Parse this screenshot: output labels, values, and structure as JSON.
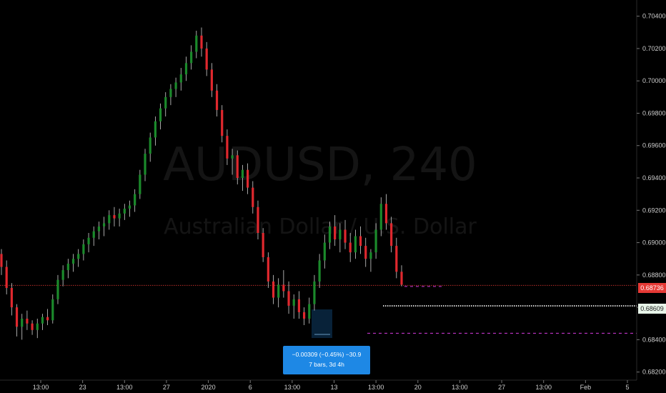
{
  "watermark": {
    "symbol": "AUDUSD, 240",
    "description": "Australian Dollar / U.S. Dollar"
  },
  "colors": {
    "up": "#1b8a2b",
    "down": "#e0282e",
    "measure": "#1e88e5",
    "dash_magenta": "#d63be0",
    "dash_white": "#ffffff",
    "last_price": "#e53935"
  },
  "price_axis": {
    "labels": [
      "0.70400",
      "0.70200",
      "0.70000",
      "0.69800",
      "0.69600",
      "0.69400",
      "0.69200",
      "0.69000",
      "0.68800",
      "0.68600",
      "0.68400",
      "0.68200"
    ]
  },
  "time_axis": {
    "labels": [
      "13:00",
      "23",
      "13:00",
      "27",
      "2020",
      "6",
      "13:00",
      "13",
      "13:00",
      "20",
      "13:00",
      "27",
      "13:00",
      "Feb",
      "5"
    ]
  },
  "price_tags": {
    "last": "0.68736",
    "line": "0.68609"
  },
  "measure_tool": {
    "line1": "−0.00309 (−0.45%) −30.9",
    "line2": "7 bars, 3d 4h"
  },
  "chart_data": {
    "type": "candlestick",
    "symbol": "AUDUSD",
    "interval": "240",
    "ylim": [
      0.6815,
      0.705
    ],
    "last_price": 0.68736,
    "horizontal_lines": [
      {
        "price": 0.68736,
        "style": "dotted",
        "color": "#e53935"
      },
      {
        "price": 0.68609,
        "style": "dotted",
        "color": "#ffffff"
      },
      {
        "price": 0.6844,
        "style": "dashed",
        "color": "#d63be0"
      },
      {
        "price": 0.68729,
        "style": "dashed",
        "color": "#d63be0"
      }
    ],
    "candles_ohlc": [
      [
        0.6893,
        0.6896,
        0.688,
        0.6885
      ],
      [
        0.6885,
        0.6889,
        0.6868,
        0.6872
      ],
      [
        0.6872,
        0.6875,
        0.6855,
        0.686
      ],
      [
        0.686,
        0.6862,
        0.6842,
        0.6848
      ],
      [
        0.6848,
        0.6856,
        0.684,
        0.6853
      ],
      [
        0.6853,
        0.6858,
        0.6846,
        0.685
      ],
      [
        0.685,
        0.6852,
        0.6843,
        0.6846
      ],
      [
        0.6846,
        0.6853,
        0.6841,
        0.685
      ],
      [
        0.685,
        0.6856,
        0.6846,
        0.6854
      ],
      [
        0.6854,
        0.6859,
        0.6849,
        0.6852
      ],
      [
        0.6852,
        0.6868,
        0.685,
        0.6865
      ],
      [
        0.6865,
        0.688,
        0.6862,
        0.6877
      ],
      [
        0.6877,
        0.6886,
        0.6873,
        0.6883
      ],
      [
        0.6883,
        0.689,
        0.6878,
        0.6887
      ],
      [
        0.6887,
        0.6893,
        0.6882,
        0.689
      ],
      [
        0.689,
        0.6896,
        0.6885,
        0.6893
      ],
      [
        0.6893,
        0.6902,
        0.6889,
        0.6899
      ],
      [
        0.6899,
        0.6906,
        0.6894,
        0.6903
      ],
      [
        0.6903,
        0.691,
        0.6898,
        0.6907
      ],
      [
        0.6907,
        0.6913,
        0.6902,
        0.691
      ],
      [
        0.691,
        0.6916,
        0.6904,
        0.6912
      ],
      [
        0.6912,
        0.692,
        0.6908,
        0.6917
      ],
      [
        0.6917,
        0.6922,
        0.691,
        0.6915
      ],
      [
        0.6915,
        0.6921,
        0.691,
        0.6918
      ],
      [
        0.6918,
        0.6924,
        0.6914,
        0.6921
      ],
      [
        0.6921,
        0.6926,
        0.6916,
        0.6923
      ],
      [
        0.6923,
        0.6933,
        0.6919,
        0.693
      ],
      [
        0.693,
        0.6945,
        0.6927,
        0.6942
      ],
      [
        0.6942,
        0.6958,
        0.6938,
        0.6955
      ],
      [
        0.6955,
        0.6968,
        0.695,
        0.6965
      ],
      [
        0.6965,
        0.6978,
        0.696,
        0.6975
      ],
      [
        0.6975,
        0.6986,
        0.697,
        0.6983
      ],
      [
        0.6983,
        0.6993,
        0.6978,
        0.699
      ],
      [
        0.699,
        0.6998,
        0.6985,
        0.6995
      ],
      [
        0.6995,
        0.7002,
        0.699,
        0.6999
      ],
      [
        0.6999,
        0.7008,
        0.6994,
        0.7004
      ],
      [
        0.7004,
        0.7015,
        0.7,
        0.7011
      ],
      [
        0.7011,
        0.7022,
        0.7007,
        0.7018
      ],
      [
        0.7018,
        0.7031,
        0.7014,
        0.7028
      ],
      [
        0.7028,
        0.7033,
        0.7015,
        0.702
      ],
      [
        0.702,
        0.7024,
        0.7003,
        0.7007
      ],
      [
        0.7007,
        0.7011,
        0.699,
        0.6994
      ],
      [
        0.6994,
        0.6998,
        0.6978,
        0.6982
      ],
      [
        0.6982,
        0.6985,
        0.6962,
        0.6966
      ],
      [
        0.6966,
        0.697,
        0.6948,
        0.6952
      ],
      [
        0.6952,
        0.6958,
        0.6942,
        0.6954
      ],
      [
        0.6954,
        0.6957,
        0.6936,
        0.694
      ],
      [
        0.694,
        0.6948,
        0.6932,
        0.6945
      ],
      [
        0.6945,
        0.6949,
        0.693,
        0.6934
      ],
      [
        0.6934,
        0.6938,
        0.6918,
        0.6922
      ],
      [
        0.6922,
        0.6926,
        0.6902,
        0.6906
      ],
      [
        0.6906,
        0.6909,
        0.6888,
        0.6891
      ],
      [
        0.6891,
        0.6894,
        0.6872,
        0.6876
      ],
      [
        0.6876,
        0.688,
        0.6862,
        0.6866
      ],
      [
        0.6866,
        0.6878,
        0.686,
        0.6874
      ],
      [
        0.6874,
        0.6883,
        0.6866,
        0.687
      ],
      [
        0.687,
        0.6876,
        0.6856,
        0.6861
      ],
      [
        0.6861,
        0.6868,
        0.6853,
        0.6865
      ],
      [
        0.6865,
        0.687,
        0.6853,
        0.6857
      ],
      [
        0.6857,
        0.686,
        0.6849,
        0.6853
      ],
      [
        0.6853,
        0.6866,
        0.685,
        0.6862
      ],
      [
        0.6862,
        0.688,
        0.6858,
        0.6876
      ],
      [
        0.6876,
        0.6893,
        0.6872,
        0.6889
      ],
      [
        0.6889,
        0.6905,
        0.6884,
        0.69
      ],
      [
        0.69,
        0.6913,
        0.6896,
        0.691
      ],
      [
        0.691,
        0.6917,
        0.6898,
        0.6902
      ],
      [
        0.6902,
        0.6912,
        0.6894,
        0.6908
      ],
      [
        0.6908,
        0.6914,
        0.6896,
        0.69
      ],
      [
        0.69,
        0.6906,
        0.6888,
        0.6894
      ],
      [
        0.6894,
        0.6908,
        0.689,
        0.6904
      ],
      [
        0.6904,
        0.691,
        0.6893,
        0.6898
      ],
      [
        0.6898,
        0.6903,
        0.6885,
        0.689
      ],
      [
        0.689,
        0.6896,
        0.6882,
        0.6894
      ],
      [
        0.6894,
        0.6912,
        0.689,
        0.6908
      ],
      [
        0.6908,
        0.6928,
        0.6904,
        0.6924
      ],
      [
        0.6924,
        0.693,
        0.6908,
        0.6912
      ],
      [
        0.6912,
        0.6916,
        0.6894,
        0.6898
      ],
      [
        0.6898,
        0.6903,
        0.6878,
        0.6882
      ],
      [
        0.6882,
        0.6886,
        0.6873,
        0.6874
      ]
    ]
  }
}
